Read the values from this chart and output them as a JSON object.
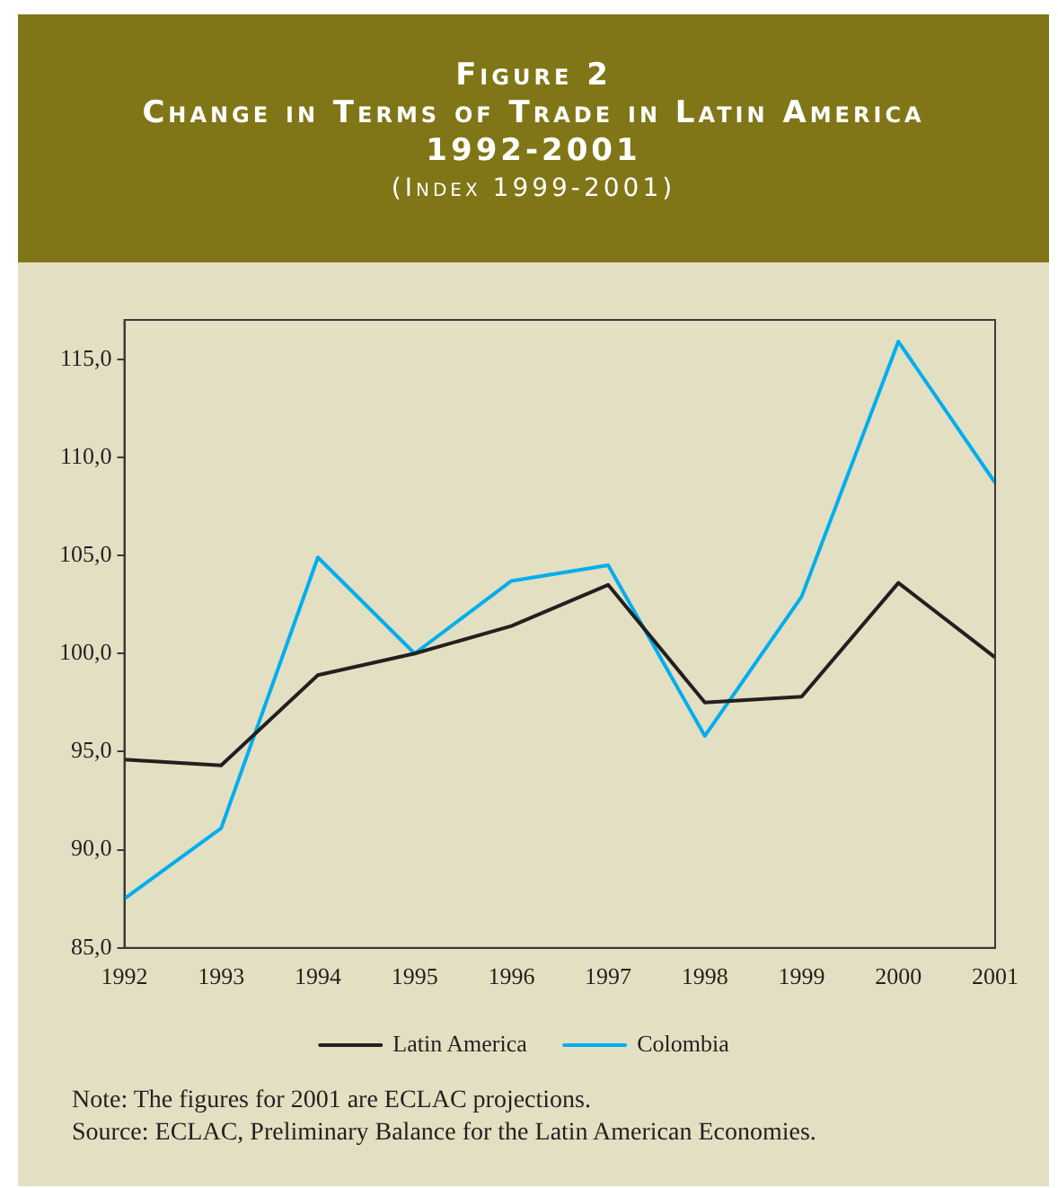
{
  "chart_data": {
    "type": "line",
    "title": "Figure 2\nChange in Terms of Trade in Latin America\n1992-2001",
    "subtitle": "(Index 1999-2001)",
    "categories": [
      "1992",
      "1993",
      "1994",
      "1995",
      "1996",
      "1997",
      "1998",
      "1999",
      "2000",
      "2001"
    ],
    "series": [
      {
        "name": "Latin America",
        "color": "#231f20",
        "values": [
          94.6,
          94.3,
          98.9,
          100.0,
          101.4,
          103.5,
          97.5,
          97.8,
          103.6,
          99.8
        ]
      },
      {
        "name": "Colombia",
        "color": "#00aeef",
        "values": [
          87.5,
          91.1,
          104.9,
          100.0,
          103.7,
          104.5,
          95.8,
          102.9,
          115.9,
          108.7
        ]
      }
    ],
    "ylim": [
      85,
      117
    ],
    "yticks": [
      {
        "value": 85,
        "label": "85,0"
      },
      {
        "value": 90,
        "label": "90,0"
      },
      {
        "value": 95,
        "label": "95,0"
      },
      {
        "value": 100,
        "label": "100,0"
      },
      {
        "value": 105,
        "label": "105,0"
      },
      {
        "value": 110,
        "label": "110,0"
      },
      {
        "value": 115,
        "label": "115,0"
      }
    ],
    "grid": false,
    "legend": "bottom",
    "marker": "none",
    "line_style": "solid",
    "annotations": [
      "Note: The figures for 2001 are ECLAC projections.",
      "Source: ECLAC, Preliminary Balance for the Latin American Economies."
    ]
  }
}
